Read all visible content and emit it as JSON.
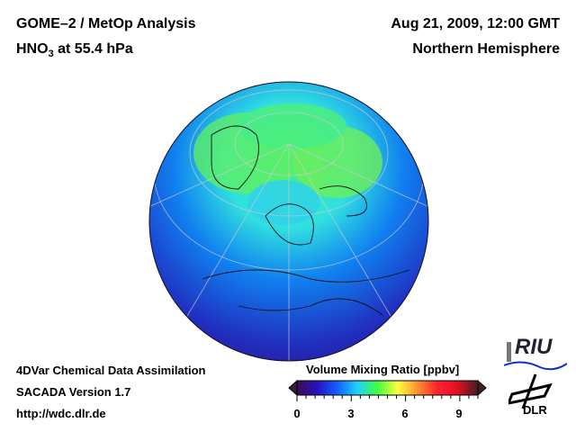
{
  "header": {
    "title": "GOME–2 / MetOp Analysis",
    "species": "HNO",
    "species_sub": "3",
    "level": " at 55.4 hPa",
    "datetime": "Aug 21, 2009, 12:00 GMT",
    "region": "Northern Hemisphere"
  },
  "footer": {
    "line1": "4DVar Chemical Data Assimilation",
    "line2": "SACADA Version 1.7",
    "line3": "http://wdc.dlr.de"
  },
  "colorbar": {
    "title": "Volume Mixing Ratio [ppbv]",
    "ticks": [
      "0",
      "3",
      "6",
      "9"
    ],
    "range": [
      0,
      10
    ],
    "colors": [
      "#3a1050",
      "#2a10c0",
      "#1060ff",
      "#20d0ff",
      "#40ff40",
      "#ffff40",
      "#ff9030",
      "#ff2030",
      "#e01020",
      "#402020"
    ]
  },
  "logos": {
    "riu": "RIU",
    "dlr": "DLR"
  }
}
